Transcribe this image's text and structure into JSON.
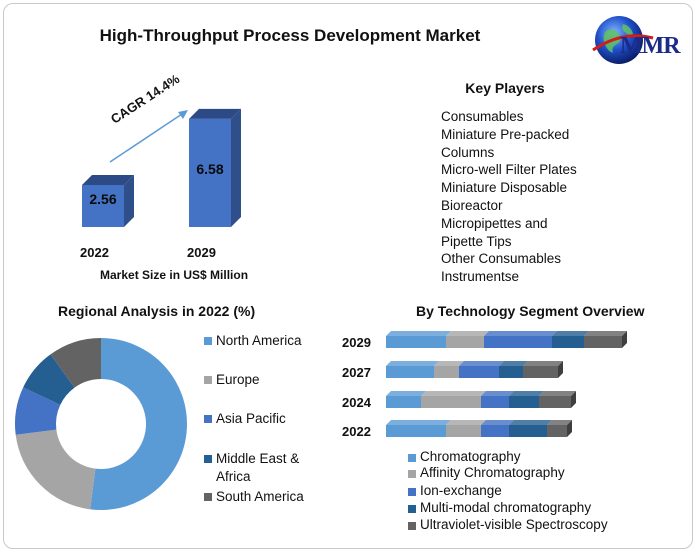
{
  "title": "High-Throughput Process Development Market",
  "logo": {
    "text": "MMR",
    "icon": "globe-icon"
  },
  "key_players": {
    "title": "Key Players",
    "items": [
      "Consumables",
      "Miniature Pre-packed",
      "Columns",
      "Micro-well Filter Plates",
      "Miniature Disposable",
      "Bioreactor",
      "Micropipettes and",
      "Pipette Tips",
      "Other Consumables",
      "Instrumentse"
    ]
  },
  "colors": {
    "bar_front": "#4472c4",
    "bar_side": "#2f4f8a",
    "north_america": "#5b9bd5",
    "europe": "#a5a5a5",
    "asia_pacific": "#4472c4",
    "middle_east_africa": "#255e91",
    "south_america": "#636363"
  },
  "chart_data": [
    {
      "type": "bar",
      "title": "",
      "categories": [
        "2022",
        "2029"
      ],
      "values": [
        2.56,
        6.58
      ],
      "value_labels": [
        "2.56",
        "6.58"
      ],
      "xlabel": "Market Size in US$ Million",
      "ylabel": "",
      "ylim": [
        0,
        7
      ],
      "annotation": "CAGR 14.4%"
    },
    {
      "type": "pie",
      "title": "Regional Analysis in 2022 (%)",
      "labels": [
        "North America",
        "Europe",
        "Asia Pacific",
        "Middle East & Africa",
        "South America"
      ],
      "legend_lines": [
        [
          "North America"
        ],
        [
          "Europe"
        ],
        [
          "Asia Pacific"
        ],
        [
          "Middle East &",
          "Africa"
        ],
        [
          "South America"
        ]
      ],
      "values": [
        52,
        21,
        9,
        8,
        10
      ],
      "donut": true
    },
    {
      "type": "bar",
      "orientation": "horizontal",
      "stacked": true,
      "title": "By Technology Segment Overview",
      "categories": [
        "2029",
        "2027",
        "2024",
        "2022"
      ],
      "series": [
        {
          "name": "Chromatography",
          "values": [
            60,
            48,
            35,
            60
          ]
        },
        {
          "name": "Affinity Chromatography",
          "values": [
            38,
            25,
            60,
            35
          ]
        },
        {
          "name": "Ion-exchange",
          "values": [
            68,
            40,
            28,
            28
          ]
        },
        {
          "name": "Multi-modal chromatography",
          "values": [
            32,
            24,
            30,
            38
          ]
        },
        {
          "name": "Ultraviolet-visible Spectroscopy",
          "values": [
            38,
            35,
            32,
            20
          ]
        }
      ]
    }
  ]
}
